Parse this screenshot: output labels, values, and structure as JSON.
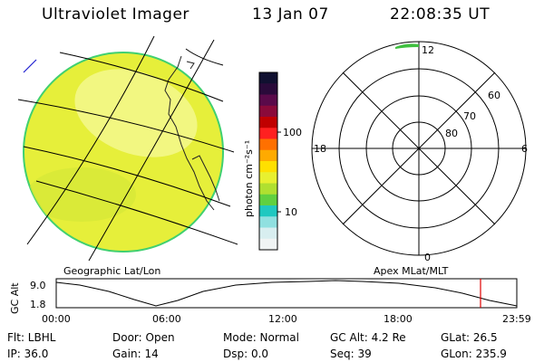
{
  "header": {
    "title": "Ultraviolet Imager",
    "date": "13 Jan 07",
    "time": "22:08:35 UT"
  },
  "colorbar": {
    "unit_label": "photon cm⁻²s⁻¹",
    "ticks": [
      "100",
      "10"
    ],
    "colors": [
      "#101030",
      "#2a0a3a",
      "#5a0a4a",
      "#8a0a3a",
      "#c00000",
      "#ff2020",
      "#ff7000",
      "#ffaa00",
      "#ffe000",
      "#e8f030",
      "#b0e030",
      "#60d040",
      "#20c8c0",
      "#90e0e0",
      "#d8eef0",
      "#f0f4f4"
    ]
  },
  "polar": {
    "ring_labels": [
      "60",
      "70",
      "80"
    ],
    "mlt_labels": {
      "top": "12",
      "left": "18",
      "right": "6",
      "bottom": "0"
    }
  },
  "footer_labels": {
    "geo": "Geographic Lat/Lon",
    "apex": "Apex MLat/MLT"
  },
  "orbit": {
    "ylabel": "GC Alt",
    "y_ticks": [
      "9.0",
      "1.8"
    ],
    "x_ticks": [
      "00:00",
      "06:00",
      "12:00",
      "18:00",
      "23:59"
    ]
  },
  "info": {
    "filter": "Flt: LBHL",
    "ip": "IP: 36.0",
    "door": "Door: Open",
    "gain": "Gain: 14",
    "mode": "Mode:  Normal",
    "dsp": "Dsp:        0.0",
    "gc_alt": "GC Alt: 4.2 Re",
    "seq": "Seq: 39",
    "glat": "GLat:   26.5",
    "glon": "GLon: 235.9"
  },
  "colors": {
    "earth_fill": "#e6ef3a",
    "earth_light": "#f6fa9a",
    "limb": "#40d070",
    "orbit_marker": "#e00000"
  }
}
